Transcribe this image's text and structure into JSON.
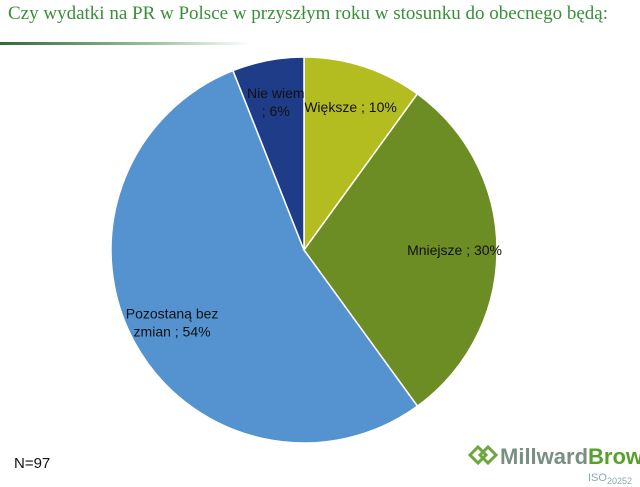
{
  "chart_data": {
    "type": "pie",
    "title": "Czy wydatki na PR w Polsce w przyszłym roku w stosunku do obecnego będą:",
    "values": [
      10,
      30,
      54,
      6
    ],
    "value_labels": [
      "Większe ; 10%",
      "Mniejsze ; 30%",
      "Pozostaną bez zmian ; 54%",
      "Nie wiem ; 6%"
    ],
    "colors": [
      "#b4bd1f",
      "#6c8c24",
      "#5593d0",
      "#1f3c88"
    ],
    "note": "N=97"
  },
  "logo": {
    "name_first": "Millward",
    "name_second": "Brown",
    "iso": "ISO",
    "iso_number": "20252"
  }
}
